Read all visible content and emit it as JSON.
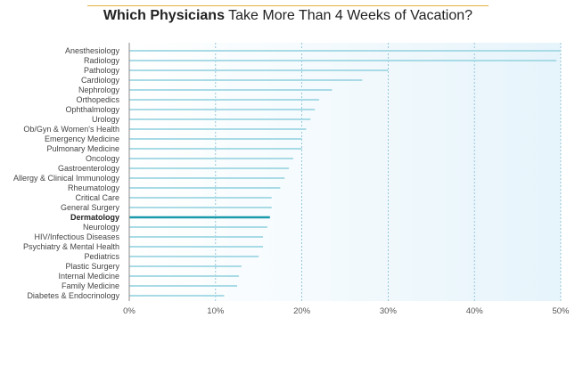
{
  "title": {
    "bold_part": "Which Physicians",
    "rest_part": "Take More Than 4 Weeks of Vacation?"
  },
  "colors": {
    "bar": "#a9dbe6",
    "highlight_bar": "#1b9aab",
    "title_rule": "#e5b43c",
    "plot_bg": "#eef7fc",
    "grid": "#7fbcd0"
  },
  "chart_data": {
    "type": "bar",
    "orientation": "horizontal",
    "title": "Which Physicians Take More Than 4 Weeks of Vacation?",
    "xlabel": "",
    "ylabel": "",
    "xlim": [
      0,
      50
    ],
    "xticks": [
      "0%",
      "10%",
      "20%",
      "30%",
      "40%",
      "50%"
    ],
    "grid": true,
    "highlight": "Dermatology",
    "categories": [
      "Anesthesiology",
      "Radiology",
      "Pathology",
      "Cardiology",
      "Nephrology",
      "Orthopedics",
      "Ophthalmology",
      "Urology",
      "Ob/Gyn & Women's Health",
      "Emergency Medicine",
      "Pulmonary Medicine",
      "Oncology",
      "Gastroenterology",
      "Allergy & Clinical Immunology",
      "Rheumatology",
      "Critical Care",
      "General Surgery",
      "Dermatology",
      "Neurology",
      "HIV/Infectious Diseases",
      "Psychiatry & Mental Health",
      "Pediatrics",
      "Plastic Surgery",
      "Internal Medicine",
      "Family Medicine",
      "Diabetes & Endocrinology"
    ],
    "values": [
      50,
      49.5,
      30,
      27,
      23.5,
      22,
      21.5,
      21,
      20.5,
      20,
      20,
      19,
      18.5,
      18,
      17.5,
      16.5,
      16.5,
      16.3,
      16,
      15.5,
      15.5,
      15,
      13,
      12.7,
      12.5,
      11
    ]
  }
}
